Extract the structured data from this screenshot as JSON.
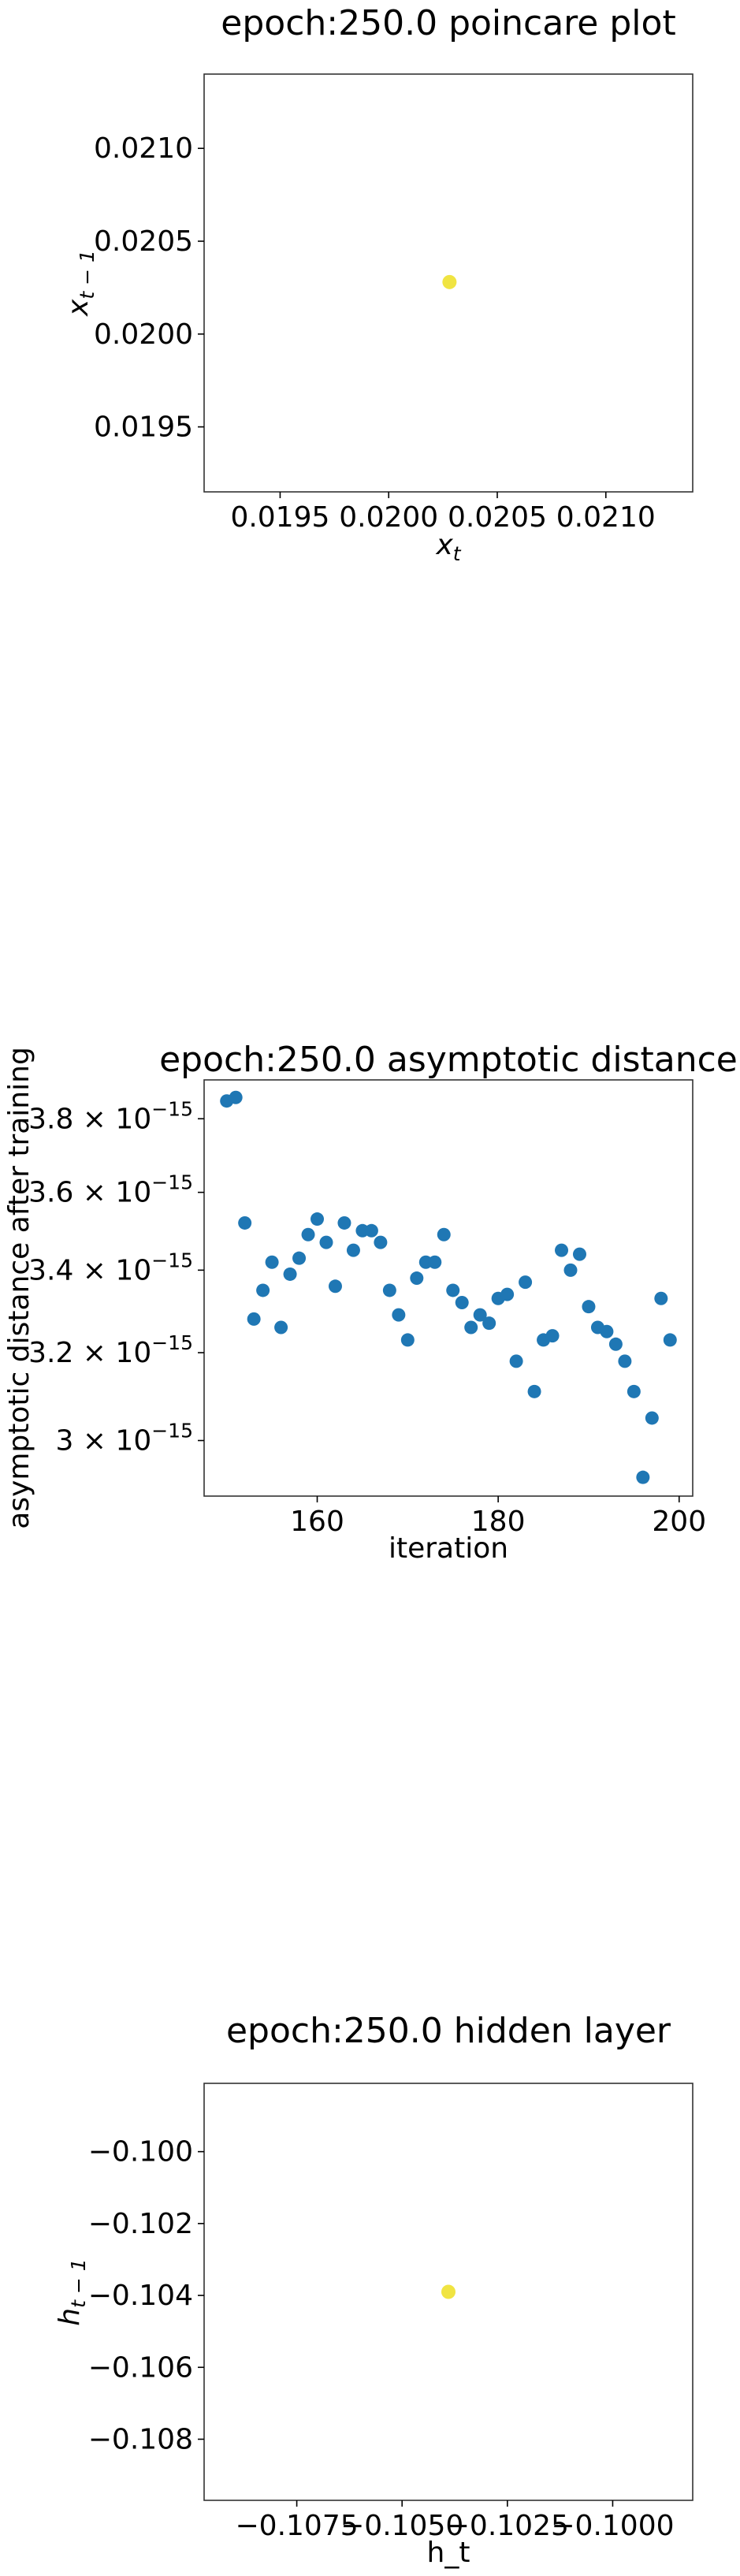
{
  "chart_data": [
    {
      "type": "scatter",
      "title": "epoch:250.0 poincare plot",
      "xlabel": "x_t",
      "ylabel": "x_{t-1}",
      "xlim": [
        0.01915,
        0.0214
      ],
      "ylim": [
        0.01915,
        0.0214
      ],
      "xticks": [
        0.0195,
        0.02,
        0.0205,
        0.021
      ],
      "xtick_labels": [
        "0.0195",
        "0.0200",
        "0.0205",
        "0.0210"
      ],
      "yticks": [
        0.0195,
        0.02,
        0.0205,
        0.021
      ],
      "ytick_labels": [
        "0.0195",
        "0.0200",
        "0.0205",
        "0.0210"
      ],
      "grid": false,
      "marker_color": "#f0e442",
      "points": [
        [
          0.02028,
          0.02028
        ]
      ]
    },
    {
      "type": "scatter",
      "title": "epoch:250.0 asymptotic distance",
      "xlabel": "iteration",
      "ylabel": "asymptotic distance after training",
      "y_scale": "log",
      "xlim": [
        147.5,
        201.5
      ],
      "ylim": [
        2.88e-15,
        3.91e-15
      ],
      "xticks": [
        160,
        180,
        200
      ],
      "xtick_labels": [
        "160",
        "180",
        "200"
      ],
      "yticks": [
        3e-15,
        3.2e-15,
        3.4e-15,
        3.6e-15,
        3.8e-15
      ],
      "ytick_mantissas": [
        "3",
        "3.2",
        "3.4",
        "3.6",
        "3.8"
      ],
      "ytick_exponent": "−15",
      "grid": false,
      "marker_color": "#1f77b4",
      "x": [
        150,
        151,
        152,
        153,
        154,
        155,
        156,
        157,
        158,
        159,
        160,
        161,
        162,
        163,
        164,
        165,
        166,
        167,
        168,
        169,
        170,
        171,
        172,
        173,
        174,
        175,
        176,
        177,
        178,
        179,
        180,
        181,
        182,
        183,
        184,
        185,
        186,
        187,
        188,
        189,
        190,
        191,
        192,
        193,
        194,
        195,
        196,
        197,
        198,
        199
      ],
      "y": [
        3.85e-15,
        3.86e-15,
        3.52e-15,
        3.28e-15,
        3.35e-15,
        3.42e-15,
        3.26e-15,
        3.39e-15,
        3.43e-15,
        3.49e-15,
        3.53e-15,
        3.47e-15,
        3.36e-15,
        3.52e-15,
        3.45e-15,
        3.5e-15,
        3.5e-15,
        3.47e-15,
        3.35e-15,
        3.29e-15,
        3.23e-15,
        3.38e-15,
        3.42e-15,
        3.42e-15,
        3.49e-15,
        3.35e-15,
        3.32e-15,
        3.26e-15,
        3.29e-15,
        3.27e-15,
        3.33e-15,
        3.34e-15,
        3.18e-15,
        3.37e-15,
        3.11e-15,
        3.23e-15,
        3.24e-15,
        3.45e-15,
        3.4e-15,
        3.44e-15,
        3.31e-15,
        3.26e-15,
        3.25e-15,
        3.22e-15,
        3.18e-15,
        3.11e-15,
        2.92e-15,
        3.05e-15,
        3.33e-15,
        3.23e-15
      ]
    },
    {
      "type": "scatter",
      "title": "epoch:250.0 hidden layer",
      "xlabel": "h_t",
      "ylabel": "h_{t-1}",
      "xlim": [
        -0.1097,
        -0.0981
      ],
      "ylim": [
        -0.1097,
        -0.0981
      ],
      "xticks": [
        -0.1075,
        -0.105,
        -0.1025,
        -0.1
      ],
      "xtick_labels": [
        "−0.1075",
        "−0.1050",
        "−0.1025",
        "−0.1000"
      ],
      "yticks": [
        -0.108,
        -0.106,
        -0.104,
        -0.102,
        -0.1
      ],
      "ytick_labels": [
        "−0.108",
        "−0.106",
        "−0.104",
        "−0.102",
        "−0.100"
      ],
      "grid": false,
      "marker_color": "#f0e442",
      "points": [
        [
          -0.1039,
          -0.1039
        ]
      ]
    }
  ]
}
